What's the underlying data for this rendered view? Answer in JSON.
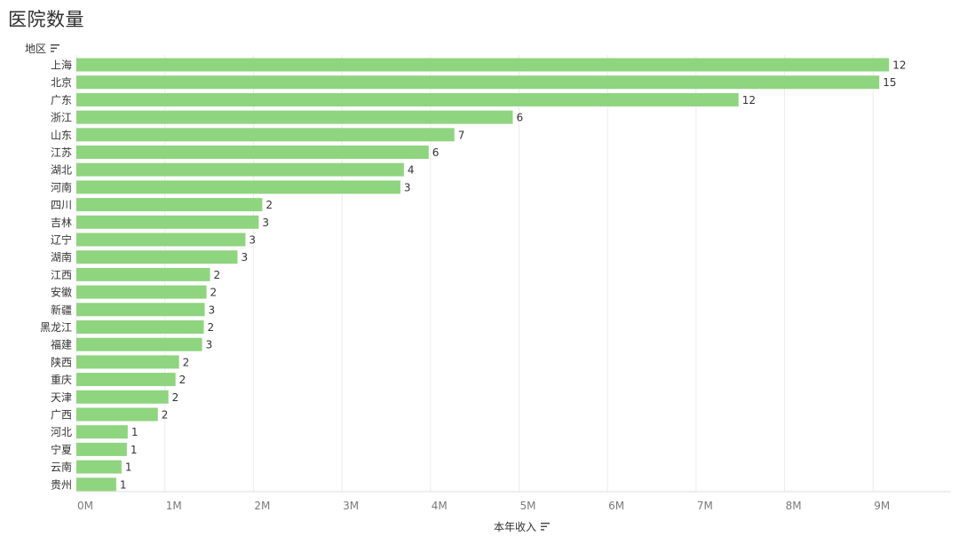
{
  "page": {
    "title": "医院数量"
  },
  "y_axis": {
    "header": "地区",
    "sort_icon": "sort-descending-icon"
  },
  "x_axis": {
    "header": "本年收入",
    "sort_icon": "sort-descending-icon"
  },
  "chart_data": {
    "type": "bar",
    "orientation": "horizontal",
    "title": "医院数量",
    "ylabel": "地区",
    "xlabel": "本年收入",
    "categories": [
      "上海",
      "北京",
      "广东",
      "浙江",
      "山东",
      "江苏",
      "湖北",
      "河南",
      "四川",
      "吉林",
      "辽宁",
      "湖南",
      "江西",
      "安徽",
      "新疆",
      "黑龙江",
      "福建",
      "陕西",
      "重庆",
      "天津",
      "广西",
      "河北",
      "宁夏",
      "云南",
      "贵州"
    ],
    "values": [
      9180000,
      9070000,
      7480000,
      4930000,
      4270000,
      3980000,
      3700000,
      3660000,
      2100000,
      2060000,
      1910000,
      1820000,
      1510000,
      1470000,
      1450000,
      1440000,
      1420000,
      1160000,
      1120000,
      1040000,
      920000,
      580000,
      570000,
      510000,
      450000
    ],
    "labels": [
      12,
      15,
      12,
      6,
      7,
      6,
      4,
      3,
      2,
      3,
      3,
      3,
      2,
      2,
      3,
      2,
      3,
      2,
      2,
      2,
      2,
      1,
      1,
      1,
      1
    ],
    "xticks": [
      "0M",
      "1M",
      "2M",
      "3M",
      "4M",
      "5M",
      "6M",
      "7M",
      "8M",
      "9M"
    ],
    "xlim": [
      0,
      9870000
    ],
    "grid": true,
    "bar_color": "#8fd47f",
    "grid_color": "#ececec",
    "label_color": "#333333",
    "tick_color": "#7a7a7a"
  }
}
